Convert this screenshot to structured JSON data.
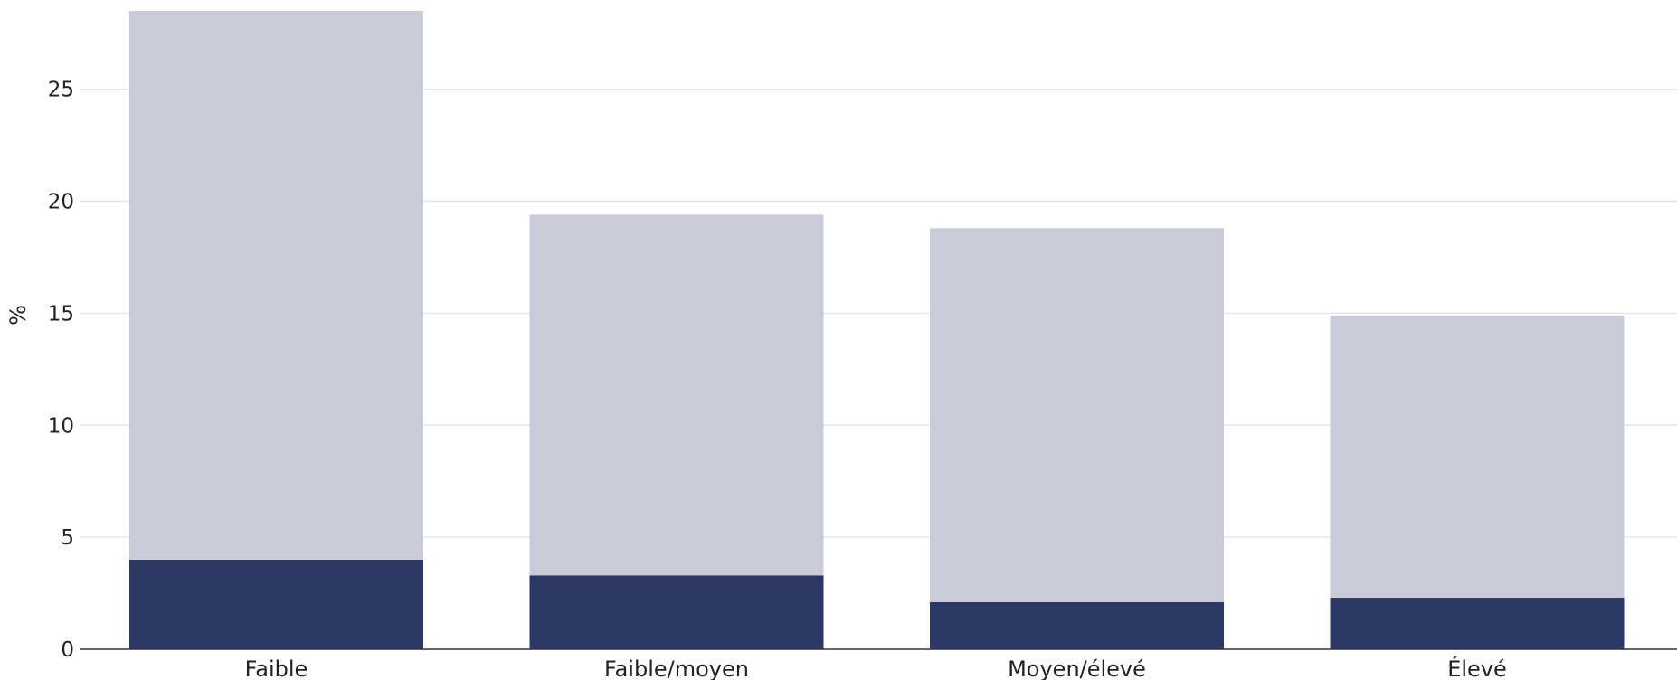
{
  "chart_data": {
    "type": "bar",
    "stacked": true,
    "title": "",
    "xlabel": "",
    "ylabel": "%",
    "ylim": [
      0,
      28.5
    ],
    "yticks": [
      0,
      5,
      10,
      15,
      20,
      25
    ],
    "grid": true,
    "categories": [
      "Faible",
      "Faible/moyen",
      "Moyen/élevé",
      "Élevé"
    ],
    "series": [
      {
        "color": "#2b3765",
        "values": [
          4.0,
          3.3,
          2.1,
          2.3
        ]
      },
      {
        "color": "#cacbd8",
        "values": [
          24.5,
          16.1,
          16.7,
          12.6
        ]
      }
    ]
  }
}
